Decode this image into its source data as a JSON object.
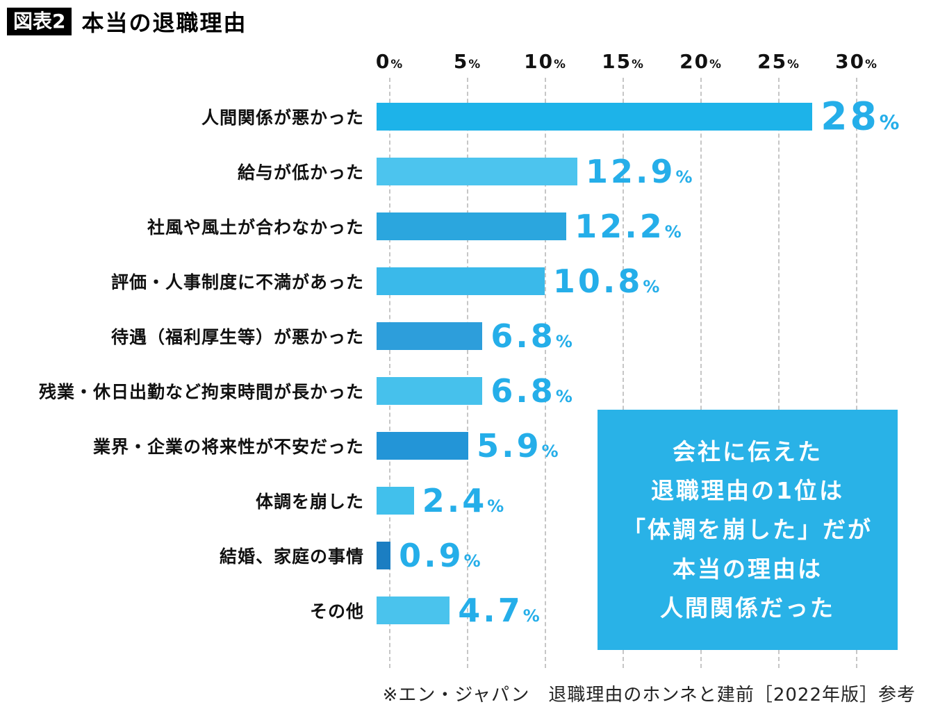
{
  "header": {
    "badge": "図表2",
    "title": "本当の退職理由"
  },
  "chart_data": {
    "type": "bar",
    "orientation": "horizontal",
    "title": "本当の退職理由",
    "categories": [
      "人間関係が悪かった",
      "給与が低かった",
      "社風や風土が合わなかった",
      "評価・人事制度に不満があった",
      "待遇（福利厚生等）が悪かった",
      "残業・休日出勤など拘束時間が長かった",
      "業界・企業の将来性が不安だった",
      "体調を崩した",
      "結婚、家庭の事情",
      "その他"
    ],
    "values": [
      28,
      12.9,
      12.2,
      10.8,
      6.8,
      6.8,
      5.9,
      2.4,
      0.9,
      4.7
    ],
    "value_labels": [
      "28%",
      "12.9%",
      "12.2%",
      "10.8%",
      "6.8%",
      "6.8%",
      "5.9%",
      "2.4%",
      "0.9%",
      "4.7%"
    ],
    "bar_colors": [
      "#1db3e9",
      "#4cc4ee",
      "#2ba6de",
      "#3ab9ea",
      "#2d9edb",
      "#46c1ec",
      "#2395d7",
      "#41c0ec",
      "#1b7ec2",
      "#4ac3ed"
    ],
    "x_ticks": [
      "0%",
      "5%",
      "10%",
      "15%",
      "20%",
      "25%",
      "30%"
    ],
    "x_tick_values": [
      0,
      5,
      10,
      15,
      20,
      25,
      30
    ],
    "xlim": [
      0,
      30
    ],
    "grid": "dashed-vertical",
    "legend": "none"
  },
  "callout": {
    "lines": [
      "会社に伝えた",
      "退職理由の1位は",
      "「体調を崩した」だが",
      "本当の理由は",
      "人間関係だった"
    ],
    "background": "#29b2e7",
    "text_color": "#ffffff"
  },
  "footer": {
    "source": "※エン・ジャパン　退職理由のホンネと建前［2022年版］参考"
  },
  "colors": {
    "accent": "#29b2e7",
    "value_label": "#25aee9",
    "grid": "#c6c6c6",
    "badge_bg": "#000000",
    "badge_text": "#ffffff"
  }
}
